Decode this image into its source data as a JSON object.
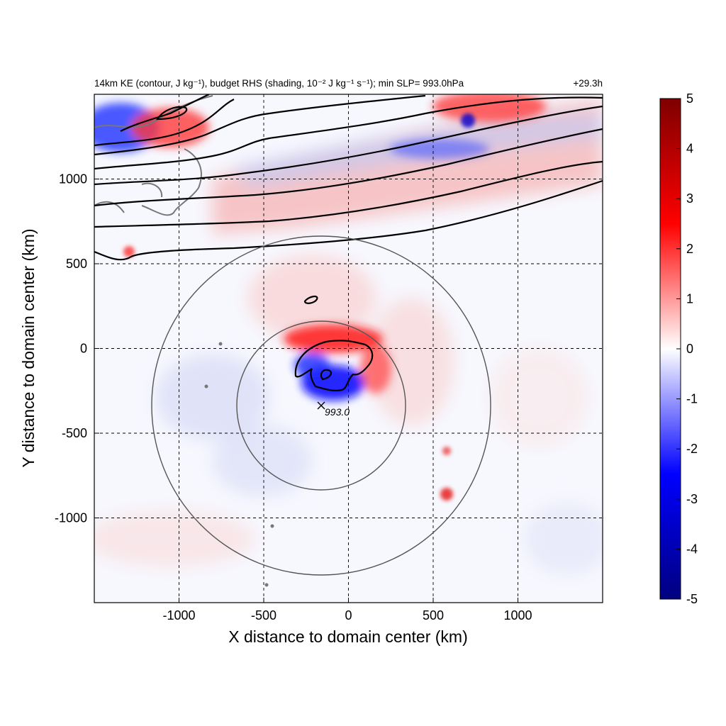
{
  "chart_data": {
    "type": "heatmap",
    "title": "14km KE (contour, J kg⁻¹), budget RHS (shading, 10⁻² J kg⁻¹ s⁻¹); min SLP= 993.0hPa",
    "time_label": "+29.3h",
    "xlabel": "X distance to domain center (km)",
    "ylabel": "Y distance to domain center (km)",
    "xlim": [
      -1500,
      1500
    ],
    "ylim": [
      -1500,
      1500
    ],
    "xticks": [
      -1000,
      -500,
      0,
      500,
      1000
    ],
    "yticks": [
      -1000,
      -500,
      0,
      500,
      1000
    ],
    "grid": true,
    "colorbar": {
      "min": -5,
      "max": 5,
      "ticks": [
        -5,
        -4,
        -3,
        -2,
        -1,
        0,
        1,
        2,
        3,
        4,
        5
      ],
      "colormap": [
        "#00007f",
        "#0000ff",
        "#ffffff",
        "#ff0000",
        "#7f0000"
      ]
    },
    "min_slp": {
      "x": -160,
      "y": -330,
      "label": "993.0"
    },
    "range_rings": {
      "center": [
        -160,
        -330
      ],
      "radii_km": [
        500,
        1000
      ]
    }
  }
}
